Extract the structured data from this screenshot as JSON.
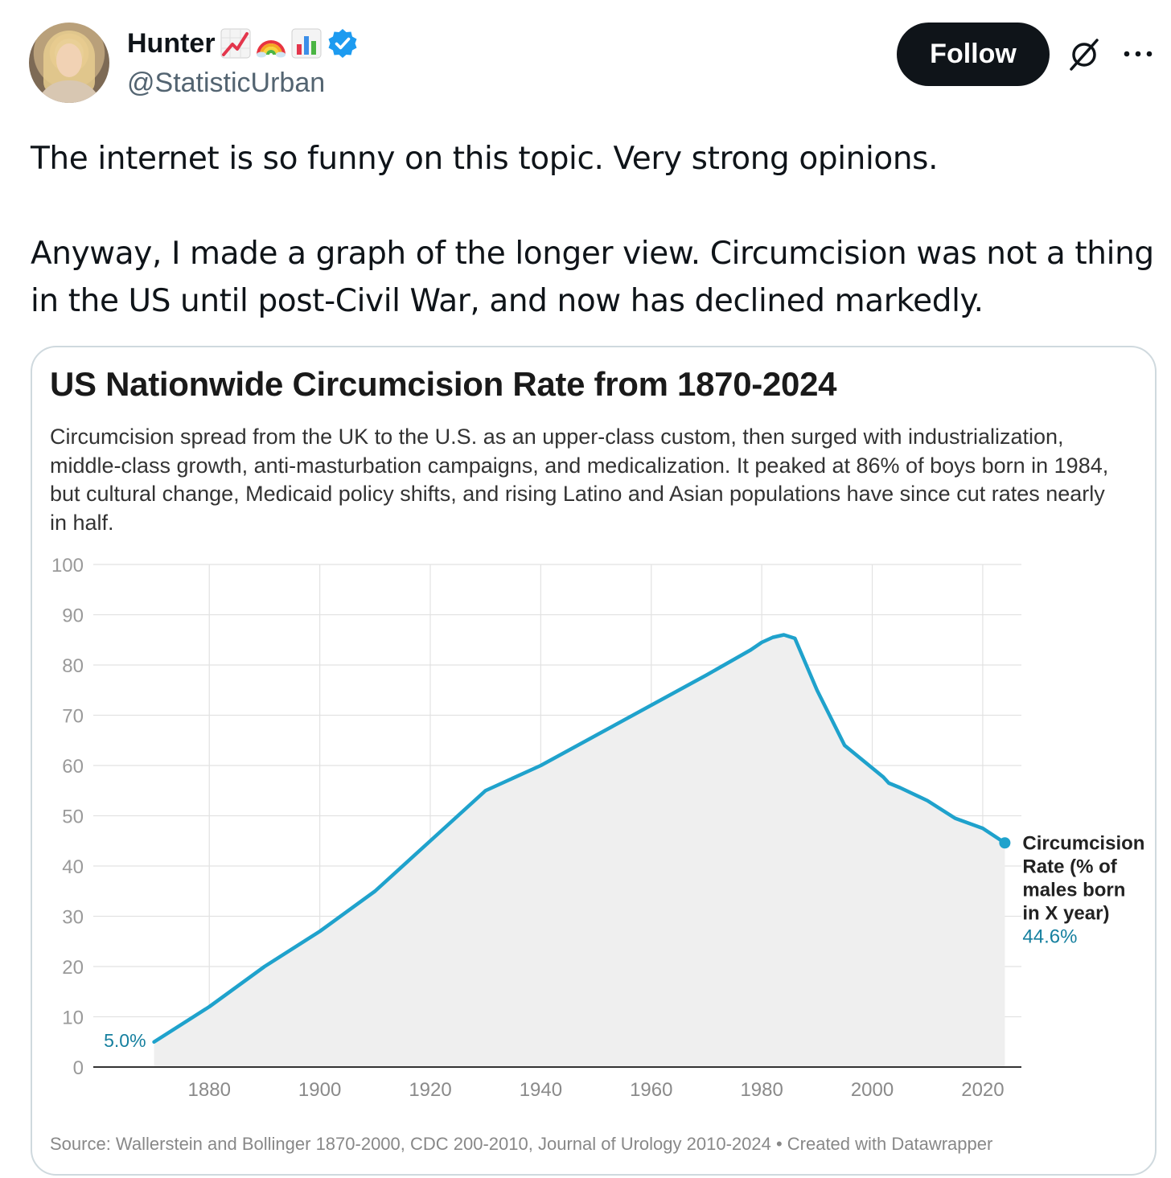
{
  "tweet": {
    "author_name": "Hunter",
    "handle": "@StatisticUrban",
    "follow_label": "Follow",
    "name_emojis": [
      "chart-increasing-icon",
      "rainbow-icon",
      "bar-chart-icon"
    ],
    "paragraphs": [
      "The internet is so funny on this topic. Very strong opinions.",
      "Anyway, I made a graph of the longer view. Circumcision was not a thing in the US until post-Civil War, and now has declined markedly."
    ]
  },
  "colors": {
    "line": "#1fa2cc",
    "area": "#efefef",
    "label_teal": "#16809f",
    "verified": "#1d9bf0"
  },
  "chart_data": {
    "type": "line",
    "title": "US Nationwide Circumcision Rate from 1870-2024",
    "subtitle": "Circumcision spread from the UK to the U.S. as an upper-class custom, then surged with industrialization, middle-class growth, anti-masturbation campaigns, and medicalization. It peaked at 86% of boys born in 1984, but cultural change, Medicaid policy shifts, and rising Latino and Asian populations have since cut rates nearly in half.",
    "source": "Source: Wallerstein and Bollinger 1870-2000, CDC 200-2010, Journal of Urology 2010-2024 • Created with Datawrapper",
    "xlabel": "",
    "ylabel": "",
    "xlim": [
      1859,
      2027
    ],
    "ylim": [
      0,
      100
    ],
    "x_ticks": [
      1880,
      1900,
      1920,
      1940,
      1960,
      1980,
      2000,
      2020
    ],
    "y_ticks": [
      0,
      10,
      20,
      30,
      40,
      50,
      60,
      70,
      80,
      90,
      100
    ],
    "grid": true,
    "area_fill": true,
    "series": [
      {
        "name": "Circumcision Rate (% of males born in X year)",
        "x": [
          1870,
          1880,
          1890,
          1900,
          1910,
          1920,
          1930,
          1940,
          1950,
          1960,
          1970,
          1978,
          1980,
          1982,
          1984,
          1986,
          1990,
          1995,
          2000,
          2002,
          2003,
          2005,
          2010,
          2015,
          2020,
          2024
        ],
        "y": [
          5.0,
          12,
          20,
          27,
          35,
          45,
          55,
          60,
          66,
          72,
          78,
          83,
          84.5,
          85.5,
          86,
          85.3,
          75,
          64,
          59.5,
          57.7,
          56.5,
          55.6,
          53,
          49.5,
          47.5,
          44.6
        ]
      }
    ],
    "annotations": {
      "start_value": "5.0%",
      "end_label_lines": [
        "Circumcision",
        "Rate (% of",
        "males born",
        "in X year)"
      ],
      "end_value": "44.6%"
    }
  }
}
